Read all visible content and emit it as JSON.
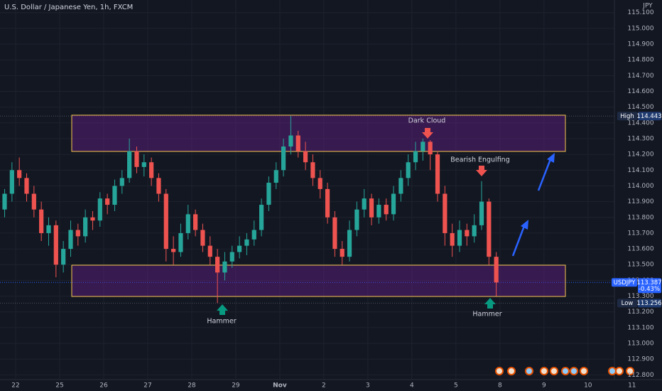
{
  "chart_data": {
    "type": "candlestick",
    "title": "U.S. Dollar / Japanese Yen, 1h, FXCM",
    "currency_label": "JPY",
    "up_color": "#26a69a",
    "down_color": "#ef5350",
    "grid": true,
    "x": [
      -1.5,
      -0.5,
      0.5,
      1.5,
      2.5,
      3.5,
      4.5,
      5.5,
      6.5,
      7.5,
      8.5,
      9.5,
      10.5,
      11.5,
      12.5,
      13.5,
      14.5,
      15.5,
      16.5,
      17.5,
      18.5,
      19.5,
      20.5,
      21.5,
      22.5,
      23.5,
      24.5,
      25.5,
      26.5,
      27.5,
      28.5,
      29.5,
      30.5,
      31.5,
      32.5,
      33.5,
      34.5,
      35.5,
      36.5,
      37.5,
      38.5,
      39.5,
      40.5,
      41.5,
      42.5,
      43.5,
      44.5,
      45.5,
      46.5,
      47.5,
      48.5,
      49.5,
      50.5,
      51.5,
      52.5,
      53.5,
      54.5,
      55.5,
      56.5,
      57.5,
      58.5,
      59.5,
      60.5,
      61.5,
      62.5,
      63.5,
      64.5,
      65.5
    ],
    "open": [
      113.85,
      113.95,
      114.1,
      114.05,
      113.95,
      113.85,
      113.7,
      113.75,
      113.5,
      113.6,
      113.72,
      113.68,
      113.8,
      113.78,
      113.92,
      113.88,
      114.0,
      114.05,
      114.22,
      114.12,
      114.15,
      114.05,
      113.95,
      113.6,
      113.58,
      113.7,
      113.82,
      113.72,
      113.62,
      113.55,
      113.45,
      113.52,
      113.58,
      113.62,
      113.66,
      113.72,
      113.88,
      114.02,
      114.1,
      114.25,
      114.32,
      114.22,
      114.15,
      114.05,
      113.98,
      113.8,
      113.6,
      113.55,
      113.72,
      113.85,
      113.92,
      113.8,
      113.88,
      113.82,
      113.95,
      114.05,
      114.15,
      114.22,
      114.28,
      114.2,
      113.95,
      113.7,
      113.62,
      113.72,
      113.68,
      113.75,
      113.9,
      113.55
    ],
    "high": [
      113.98,
      114.15,
      114.18,
      114.08,
      114.0,
      113.9,
      113.8,
      113.78,
      113.65,
      113.78,
      113.76,
      113.85,
      113.84,
      113.96,
      113.95,
      114.04,
      114.1,
      114.3,
      114.25,
      114.2,
      114.18,
      114.08,
      113.98,
      113.68,
      113.76,
      113.88,
      113.85,
      113.76,
      113.68,
      113.6,
      113.58,
      113.62,
      113.68,
      113.7,
      113.78,
      113.92,
      114.06,
      114.15,
      114.3,
      114.443,
      114.35,
      114.28,
      114.2,
      114.1,
      114.02,
      113.84,
      113.65,
      113.78,
      113.9,
      113.98,
      113.95,
      113.92,
      113.92,
      114.0,
      114.1,
      114.2,
      114.28,
      114.3,
      114.29,
      114.22,
      114.0,
      113.76,
      113.78,
      113.76,
      113.82,
      114.03,
      113.92,
      113.58
    ],
    "low": [
      113.8,
      113.9,
      114.0,
      113.9,
      113.8,
      113.65,
      113.62,
      113.42,
      113.45,
      113.55,
      113.62,
      113.64,
      113.72,
      113.74,
      113.82,
      113.84,
      113.95,
      114.02,
      114.08,
      114.06,
      114.0,
      113.9,
      113.52,
      113.5,
      113.55,
      113.66,
      113.68,
      113.58,
      113.5,
      113.256,
      113.4,
      113.48,
      113.54,
      113.56,
      113.62,
      113.68,
      113.84,
      113.98,
      114.06,
      114.2,
      114.18,
      114.1,
      114.0,
      113.92,
      113.76,
      113.55,
      113.5,
      113.52,
      113.68,
      113.8,
      113.75,
      113.76,
      113.78,
      113.78,
      113.9,
      114.0,
      114.1,
      114.16,
      114.1,
      113.9,
      113.62,
      113.55,
      113.58,
      113.62,
      113.64,
      113.72,
      113.5,
      113.3
    ],
    "close": [
      113.95,
      114.1,
      114.05,
      113.95,
      113.85,
      113.7,
      113.75,
      113.5,
      113.6,
      113.72,
      113.68,
      113.8,
      113.78,
      113.92,
      113.88,
      114.0,
      114.05,
      114.22,
      114.12,
      114.15,
      114.05,
      113.95,
      113.6,
      113.58,
      113.7,
      113.82,
      113.72,
      113.62,
      113.55,
      113.45,
      113.52,
      113.58,
      113.62,
      113.66,
      113.72,
      113.88,
      114.02,
      114.1,
      114.25,
      114.32,
      114.22,
      114.15,
      114.05,
      113.98,
      113.8,
      113.6,
      113.55,
      113.72,
      113.85,
      113.92,
      113.8,
      113.88,
      113.82,
      113.95,
      114.05,
      114.15,
      114.22,
      114.28,
      114.2,
      113.95,
      113.7,
      113.62,
      113.72,
      113.68,
      113.75,
      113.9,
      113.55,
      113.387
    ],
    "xlim": [
      -2.13,
      81.6
    ],
    "xticks": [
      {
        "value": 0,
        "label": "22"
      },
      {
        "value": 6,
        "label": "25"
      },
      {
        "value": 12,
        "label": "26"
      },
      {
        "value": 18,
        "label": "27"
      },
      {
        "value": 24,
        "label": "28"
      },
      {
        "value": 30,
        "label": "29"
      },
      {
        "value": 36,
        "label": "Nov"
      },
      {
        "value": 42,
        "label": "2"
      },
      {
        "value": 48,
        "label": "3"
      },
      {
        "value": 54,
        "label": "4"
      },
      {
        "value": 60,
        "label": "5"
      },
      {
        "value": 66,
        "label": "8"
      },
      {
        "value": 72,
        "label": "9"
      },
      {
        "value": 78,
        "label": "10"
      },
      {
        "value": 84,
        "label": "11"
      }
    ],
    "ylim": [
      112.77,
      115.18
    ],
    "yticks": [
      {
        "value": 115.1,
        "label": "115.100"
      },
      {
        "value": 115.0,
        "label": "115.000"
      },
      {
        "value": 114.9,
        "label": "114.900"
      },
      {
        "value": 114.8,
        "label": "114.800"
      },
      {
        "value": 114.7,
        "label": "114.700"
      },
      {
        "value": 114.6,
        "label": "114.600"
      },
      {
        "value": 114.5,
        "label": "114.500"
      },
      {
        "value": 114.4,
        "label": "114.400"
      },
      {
        "value": 114.3,
        "label": "114.300"
      },
      {
        "value": 114.2,
        "label": "114.200"
      },
      {
        "value": 114.1,
        "label": "114.100"
      },
      {
        "value": 114.0,
        "label": "114.000"
      },
      {
        "value": 113.9,
        "label": "113.900"
      },
      {
        "value": 113.8,
        "label": "113.800"
      },
      {
        "value": 113.7,
        "label": "113.700"
      },
      {
        "value": 113.6,
        "label": "113.600"
      },
      {
        "value": 113.5,
        "label": "113.500"
      },
      {
        "value": 113.4,
        "label": "113.400"
      },
      {
        "value": 113.3,
        "label": "113.300"
      },
      {
        "value": 113.2,
        "label": "113.200"
      },
      {
        "value": 113.1,
        "label": "113.100"
      },
      {
        "value": 113.0,
        "label": "113.000"
      },
      {
        "value": 112.9,
        "label": "112.900"
      },
      {
        "value": 112.8,
        "label": "112.800"
      }
    ],
    "price_markers": [
      {
        "name": "High",
        "value": 114.443
      },
      {
        "name": "Low",
        "value": 113.256
      },
      {
        "name": "USDJPY",
        "value": 113.387,
        "change": "-0.43%"
      }
    ],
    "annotations": [
      {
        "text": "Dark Cloud"
      },
      {
        "text": "Bearish Engulfing"
      },
      {
        "text": "Hammer"
      },
      {
        "text": "Hammer"
      }
    ]
  }
}
